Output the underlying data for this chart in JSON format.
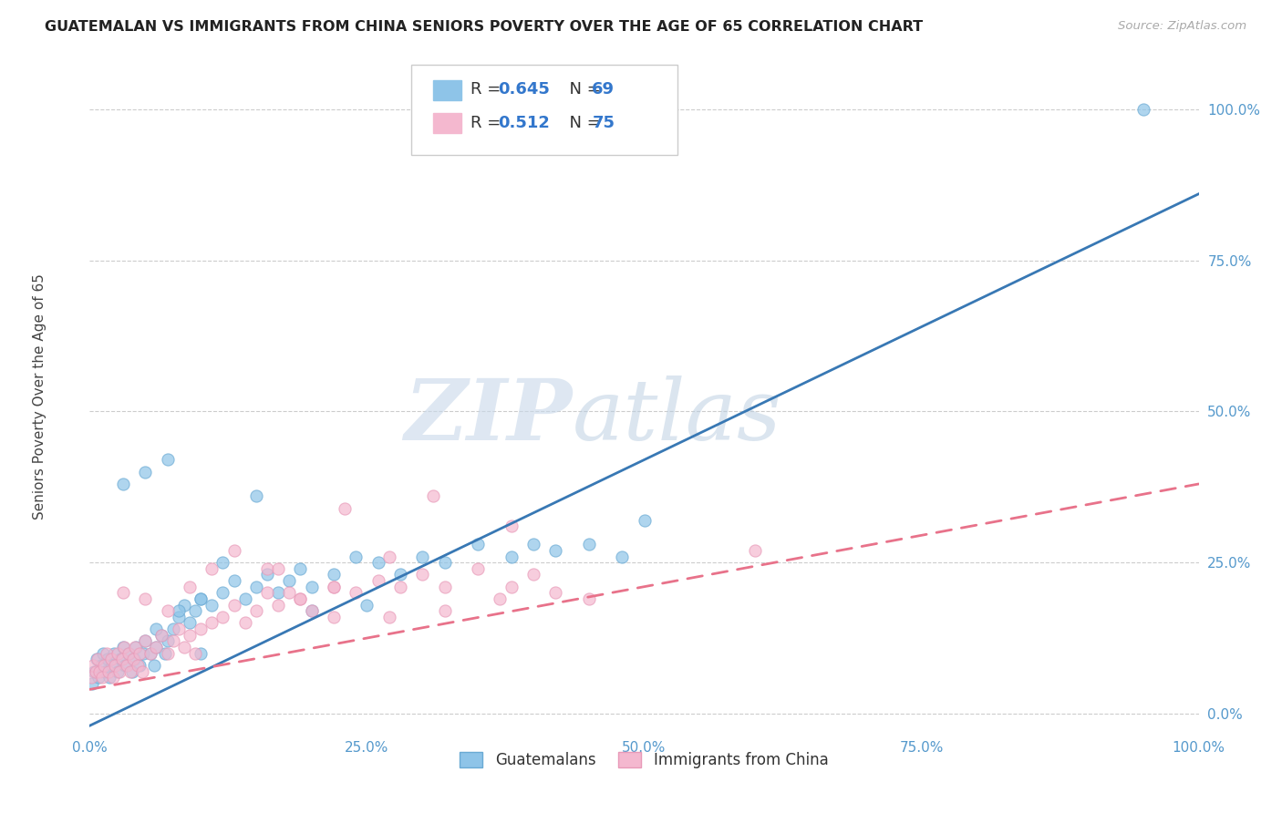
{
  "title": "GUATEMALAN VS IMMIGRANTS FROM CHINA SENIORS POVERTY OVER THE AGE OF 65 CORRELATION CHART",
  "source": "Source: ZipAtlas.com",
  "ylabel": "Seniors Poverty Over the Age of 65",
  "xlim": [
    0,
    1.0
  ],
  "ylim": [
    -0.03,
    1.08
  ],
  "x_ticks": [
    0.0,
    0.25,
    0.5,
    0.75,
    1.0
  ],
  "x_tick_labels": [
    "0.0%",
    "25.0%",
    "50.0%",
    "75.0%",
    "100.0%"
  ],
  "y_ticks": [
    0.0,
    0.25,
    0.5,
    0.75,
    1.0
  ],
  "y_tick_labels": [
    "0.0%",
    "25.0%",
    "50.0%",
    "75.0%",
    "100.0%"
  ],
  "watermark_zip": "ZIP",
  "watermark_atlas": "atlas",
  "series": [
    {
      "name": "Guatemalans",
      "R": "0.645",
      "N": "69",
      "color": "#8ec4e8",
      "edge_color": "#6aaad4",
      "line_color": "#3878b4",
      "line_style": "solid",
      "trend_x": [
        0.0,
        1.0
      ],
      "trend_y": [
        -0.02,
        0.86
      ],
      "x": [
        0.002,
        0.004,
        0.006,
        0.008,
        0.01,
        0.012,
        0.014,
        0.016,
        0.018,
        0.02,
        0.022,
        0.025,
        0.028,
        0.03,
        0.032,
        0.035,
        0.038,
        0.04,
        0.042,
        0.045,
        0.048,
        0.05,
        0.055,
        0.058,
        0.06,
        0.065,
        0.068,
        0.07,
        0.075,
        0.08,
        0.085,
        0.09,
        0.095,
        0.1,
        0.11,
        0.12,
        0.13,
        0.14,
        0.15,
        0.16,
        0.17,
        0.18,
        0.19,
        0.2,
        0.22,
        0.24,
        0.26,
        0.28,
        0.3,
        0.32,
        0.35,
        0.38,
        0.4,
        0.42,
        0.45,
        0.48,
        0.5,
        0.06,
        0.08,
        0.1,
        0.12,
        0.07,
        0.05,
        0.03,
        0.15,
        0.2,
        0.25,
        0.1,
        0.95
      ],
      "y": [
        0.05,
        0.07,
        0.09,
        0.06,
        0.08,
        0.1,
        0.07,
        0.09,
        0.06,
        0.08,
        0.1,
        0.07,
        0.09,
        0.11,
        0.08,
        0.1,
        0.07,
        0.09,
        0.11,
        0.08,
        0.1,
        0.12,
        0.1,
        0.08,
        0.11,
        0.13,
        0.1,
        0.12,
        0.14,
        0.16,
        0.18,
        0.15,
        0.17,
        0.19,
        0.18,
        0.2,
        0.22,
        0.19,
        0.21,
        0.23,
        0.2,
        0.22,
        0.24,
        0.21,
        0.23,
        0.26,
        0.25,
        0.23,
        0.26,
        0.25,
        0.28,
        0.26,
        0.28,
        0.27,
        0.28,
        0.26,
        0.32,
        0.14,
        0.17,
        0.19,
        0.25,
        0.42,
        0.4,
        0.38,
        0.36,
        0.17,
        0.18,
        0.1,
        1.0
      ]
    },
    {
      "name": "Immigrants from China",
      "R": "0.512",
      "N": "75",
      "color": "#f4b8cf",
      "edge_color": "#e89ab8",
      "line_color": "#e8728a",
      "line_style": "dashed",
      "trend_x": [
        0.0,
        1.0
      ],
      "trend_y": [
        0.04,
        0.38
      ],
      "x": [
        0.001,
        0.003,
        0.005,
        0.007,
        0.009,
        0.011,
        0.013,
        0.015,
        0.017,
        0.019,
        0.021,
        0.023,
        0.025,
        0.027,
        0.029,
        0.031,
        0.033,
        0.035,
        0.037,
        0.039,
        0.041,
        0.043,
        0.045,
        0.047,
        0.05,
        0.055,
        0.06,
        0.065,
        0.07,
        0.075,
        0.08,
        0.085,
        0.09,
        0.095,
        0.1,
        0.11,
        0.12,
        0.13,
        0.14,
        0.15,
        0.16,
        0.17,
        0.18,
        0.19,
        0.2,
        0.22,
        0.24,
        0.26,
        0.28,
        0.3,
        0.32,
        0.35,
        0.38,
        0.4,
        0.42,
        0.45,
        0.03,
        0.05,
        0.07,
        0.09,
        0.11,
        0.13,
        0.16,
        0.19,
        0.22,
        0.27,
        0.32,
        0.37,
        0.23,
        0.31,
        0.38,
        0.27,
        0.22,
        0.17,
        0.6
      ],
      "y": [
        0.06,
        0.08,
        0.07,
        0.09,
        0.07,
        0.06,
        0.08,
        0.1,
        0.07,
        0.09,
        0.06,
        0.08,
        0.1,
        0.07,
        0.09,
        0.11,
        0.08,
        0.1,
        0.07,
        0.09,
        0.11,
        0.08,
        0.1,
        0.07,
        0.12,
        0.1,
        0.11,
        0.13,
        0.1,
        0.12,
        0.14,
        0.11,
        0.13,
        0.1,
        0.14,
        0.15,
        0.16,
        0.18,
        0.15,
        0.17,
        0.2,
        0.18,
        0.2,
        0.19,
        0.17,
        0.21,
        0.2,
        0.22,
        0.21,
        0.23,
        0.21,
        0.24,
        0.21,
        0.23,
        0.2,
        0.19,
        0.2,
        0.19,
        0.17,
        0.21,
        0.24,
        0.27,
        0.24,
        0.19,
        0.16,
        0.16,
        0.17,
        0.19,
        0.34,
        0.36,
        0.31,
        0.26,
        0.21,
        0.24,
        0.27
      ]
    }
  ],
  "legend_entries": [
    {
      "R_label": "R = ",
      "R_val": "0.645",
      "N_label": "  N = ",
      "N_val": "69"
    },
    {
      "R_label": "R = ",
      "R_val": "0.512",
      "N_label": "  N = ",
      "N_val": "75"
    }
  ],
  "background_color": "#ffffff",
  "grid_color": "#cccccc",
  "title_color": "#222222",
  "ylabel_color": "#444444",
  "tick_color": "#5599cc",
  "source_color": "#aaaaaa"
}
